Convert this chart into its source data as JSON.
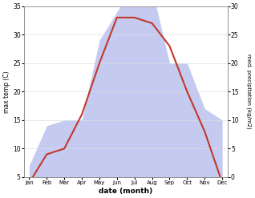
{
  "months": [
    "Jan",
    "Feb",
    "Mar",
    "Apr",
    "May",
    "Jun",
    "Jul",
    "Aug",
    "Sep",
    "Oct",
    "Nov",
    "Dec"
  ],
  "temperature": [
    4,
    9,
    10,
    16,
    25,
    33,
    33,
    32,
    28,
    20,
    13,
    4
  ],
  "precipitation": [
    2,
    9,
    10,
    10,
    24,
    29,
    34,
    33,
    20,
    20,
    12,
    10
  ],
  "temp_color": "#c0392b",
  "precip_fill_color": "#c5caf0",
  "temp_ylim": [
    5,
    35
  ],
  "temp_yticks": [
    5,
    10,
    15,
    20,
    25,
    30,
    35
  ],
  "precip_ylim": [
    0,
    30
  ],
  "precip_yticks": [
    0,
    5,
    10,
    15,
    20,
    25,
    30
  ],
  "xlabel": "date (month)",
  "ylabel_left": "max temp (C)",
  "ylabel_right": "med. precipitation (kg/m2)",
  "bg_color": "#ffffff",
  "grid_color": "#dddddd",
  "temp_linewidth": 1.5
}
